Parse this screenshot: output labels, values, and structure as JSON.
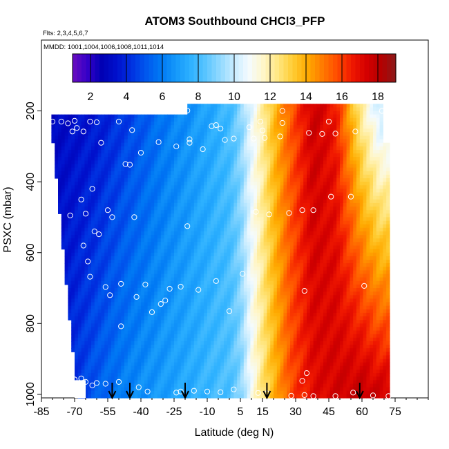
{
  "chart_data": {
    "type": "heatmap",
    "title": "ATOM3 Southbound CHCl3_PFP",
    "flights_note": "Flts: 2,3,4,5,6,7",
    "dates_note": "MMDD: 1001,1004,1006,1008,1011,1014",
    "xlabel": "Latitude (deg N)",
    "ylabel": "PSXC (mbar)",
    "x_range": [
      -85,
      90
    ],
    "x_ticks": [
      -85,
      -70,
      -55,
      -40,
      -25,
      -10,
      5,
      15,
      30,
      45,
      60,
      75
    ],
    "y_range": [
      1010,
      0
    ],
    "y_ticks": [
      200,
      400,
      600,
      800,
      1000
    ],
    "colorbar": {
      "range": [
        1,
        19
      ],
      "ticks": [
        2,
        4,
        6,
        8,
        10,
        12,
        14,
        16,
        18
      ],
      "colors": [
        "#6a0dbf",
        "#3600c8",
        "#0000b4",
        "#0010cc",
        "#0030e0",
        "#0057ee",
        "#0078f4",
        "#1497fa",
        "#2cb0ff",
        "#56c4ff",
        "#8fd8ff",
        "#c8ecff",
        "#f4fbff",
        "#fff6c8",
        "#ffe680",
        "#ffcc33",
        "#ffaa00",
        "#ff7a00",
        "#ff4c00",
        "#f01800",
        "#d40000",
        "#b40000",
        "#8c1a1a"
      ]
    },
    "surface_profile": {
      "lat": [
        -80,
        -60,
        -45,
        -30,
        -18,
        -8,
        0,
        5,
        10,
        15,
        20,
        28,
        38,
        48,
        60,
        68
      ],
      "value": [
        3.5,
        5.2,
        6.3,
        6.9,
        7.4,
        7.9,
        8.2,
        9.0,
        11.0,
        12.5,
        13.8,
        15.8,
        17.0,
        17.4,
        17.8,
        17.5
      ]
    },
    "upper_profile": {
      "lat": [
        -80,
        -60,
        -45,
        -30,
        -18,
        -8,
        0,
        5,
        10,
        15,
        20,
        28,
        38,
        48,
        60,
        68
      ],
      "value": [
        3.0,
        3.6,
        4.6,
        5.8,
        6.6,
        7.3,
        8.0,
        9.0,
        10.6,
        12.0,
        13.6,
        15.5,
        17.6,
        16.6,
        12.0,
        10.0
      ]
    },
    "samples": [
      [
        -80,
        230
      ],
      [
        -76,
        230
      ],
      [
        -73,
        235
      ],
      [
        -71,
        258
      ],
      [
        -70,
        228
      ],
      [
        -69,
        248
      ],
      [
        -66,
        258
      ],
      [
        -63,
        230
      ],
      [
        -60,
        232
      ],
      [
        -58,
        290
      ],
      [
        -50,
        230
      ],
      [
        -44,
        254
      ],
      [
        -40,
        318
      ],
      [
        -32,
        288
      ],
      [
        -24,
        300
      ],
      [
        -18,
        280
      ],
      [
        -12,
        308
      ],
      [
        -6,
        240
      ],
      [
        2,
        278
      ],
      [
        11,
        278
      ],
      [
        16,
        276
      ],
      [
        23,
        272
      ],
      [
        -66,
        580
      ],
      [
        -72,
        495
      ],
      [
        -67,
        450
      ],
      [
        -65,
        490
      ],
      [
        -61,
        540
      ],
      [
        -59,
        548
      ],
      [
        -62,
        420
      ],
      [
        -55,
        480
      ],
      [
        -53,
        500
      ],
      [
        -47,
        350
      ],
      [
        -45,
        352
      ],
      [
        -43,
        500
      ],
      [
        -38,
        690
      ],
      [
        -35,
        768
      ],
      [
        -31,
        745
      ],
      [
        -29,
        735
      ],
      [
        -27,
        702
      ],
      [
        -22,
        696
      ],
      [
        -19,
        525
      ],
      [
        -14,
        705
      ],
      [
        -6,
        680
      ],
      [
        0,
        765
      ],
      [
        6,
        660
      ],
      [
        12,
        485
      ],
      [
        18,
        492
      ],
      [
        27,
        488
      ],
      [
        33,
        480
      ],
      [
        38,
        480
      ],
      [
        46,
        442
      ],
      [
        55,
        442
      ],
      [
        61,
        694
      ],
      [
        34,
        708
      ],
      [
        -54,
        720
      ],
      [
        -49,
        808
      ],
      [
        -64,
        625
      ],
      [
        -63,
        668
      ],
      [
        -56,
        697
      ],
      [
        -49,
        688
      ],
      [
        -42,
        725
      ],
      [
        -18,
        290
      ],
      [
        -8,
        243
      ],
      [
        -4,
        250
      ],
      [
        -2,
        282
      ],
      [
        9,
        246
      ],
      [
        15,
        255
      ],
      [
        24,
        234
      ],
      [
        36,
        262
      ],
      [
        42,
        265
      ],
      [
        48,
        264
      ],
      [
        57,
        258
      ],
      [
        69,
        200
      ],
      [
        -19,
        199
      ],
      [
        14,
        230
      ],
      [
        24,
        200
      ],
      [
        45,
        230
      ],
      [
        -65,
        965
      ],
      [
        -62,
        975
      ],
      [
        -60,
        968
      ],
      [
        -56,
        970
      ],
      [
        -50,
        965
      ],
      [
        -41,
        980
      ],
      [
        -37,
        992
      ],
      [
        -24,
        995
      ],
      [
        -22,
        992
      ],
      [
        -16,
        990
      ],
      [
        -10,
        992
      ],
      [
        -4,
        994
      ],
      [
        2,
        986
      ],
      [
        13,
        996
      ],
      [
        17,
        997
      ],
      [
        28,
        1004
      ],
      [
        34,
        1002
      ],
      [
        38,
        1005
      ],
      [
        48,
        1005
      ],
      [
        56,
        995
      ],
      [
        65,
        1003
      ],
      [
        72,
        1005
      ],
      [
        33,
        962
      ],
      [
        35,
        940
      ],
      [
        -70,
        958
      ],
      [
        -67,
        955
      ]
    ],
    "arrows_lat": [
      -53,
      -45,
      -20,
      17,
      59
    ]
  }
}
